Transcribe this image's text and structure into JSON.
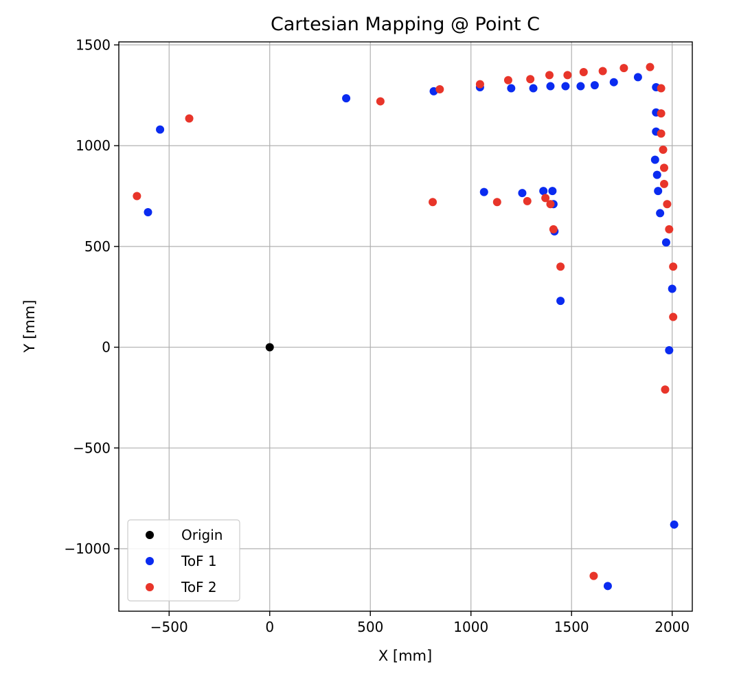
{
  "chart_data": {
    "type": "scatter",
    "title": "Cartesian Mapping @ Point C",
    "xlabel": "X [mm]",
    "ylabel": "Y [mm]",
    "xlim": [
      -750,
      2100
    ],
    "ylim": [
      -1310,
      1515
    ],
    "xticks": [
      -500,
      0,
      500,
      1000,
      1500,
      2000
    ],
    "yticks": [
      -1000,
      -500,
      0,
      500,
      1000,
      1500
    ],
    "xtick_labels": [
      "−500",
      "0",
      "500",
      "1000",
      "1500",
      "2000"
    ],
    "ytick_labels": [
      "−1000",
      "−500",
      "0",
      "500",
      "1000",
      "1500"
    ],
    "grid": true,
    "legend": "lower-left",
    "series": [
      {
        "name": "Origin",
        "color": "#000000",
        "points": [
          [
            0,
            0
          ]
        ]
      },
      {
        "name": "ToF 1",
        "color": "#0a2bf0",
        "points": [
          [
            -545,
            1080
          ],
          [
            -605,
            670
          ],
          [
            380,
            1235
          ],
          [
            815,
            1270
          ],
          [
            1045,
            1290
          ],
          [
            1200,
            1285
          ],
          [
            1310,
            1285
          ],
          [
            1395,
            1295
          ],
          [
            1470,
            1295
          ],
          [
            1545,
            1295
          ],
          [
            1615,
            1300
          ],
          [
            1710,
            1315
          ],
          [
            1830,
            1340
          ],
          [
            1920,
            1290
          ],
          [
            1920,
            1165
          ],
          [
            1920,
            1070
          ],
          [
            1915,
            930
          ],
          [
            1925,
            855
          ],
          [
            1930,
            775
          ],
          [
            1940,
            665
          ],
          [
            1970,
            520
          ],
          [
            2000,
            290
          ],
          [
            1985,
            -15
          ],
          [
            2010,
            -880
          ],
          [
            1680,
            -1185
          ],
          [
            1065,
            770
          ],
          [
            1255,
            765
          ],
          [
            1360,
            775
          ],
          [
            1405,
            775
          ],
          [
            1410,
            710
          ],
          [
            1415,
            575
          ],
          [
            1445,
            230
          ]
        ]
      },
      {
        "name": "ToF 2",
        "color": "#e8352a",
        "points": [
          [
            -660,
            750
          ],
          [
            -400,
            1135
          ],
          [
            550,
            1220
          ],
          [
            845,
            1280
          ],
          [
            1045,
            1305
          ],
          [
            1185,
            1325
          ],
          [
            1295,
            1330
          ],
          [
            1390,
            1350
          ],
          [
            1480,
            1350
          ],
          [
            1560,
            1365
          ],
          [
            1655,
            1370
          ],
          [
            1760,
            1385
          ],
          [
            1890,
            1390
          ],
          [
            1945,
            1285
          ],
          [
            1945,
            1160
          ],
          [
            1945,
            1060
          ],
          [
            1955,
            980
          ],
          [
            1960,
            890
          ],
          [
            1960,
            810
          ],
          [
            1975,
            710
          ],
          [
            1985,
            585
          ],
          [
            2005,
            400
          ],
          [
            2005,
            150
          ],
          [
            1965,
            -210
          ],
          [
            1610,
            -1135
          ],
          [
            810,
            720
          ],
          [
            1130,
            720
          ],
          [
            1280,
            725
          ],
          [
            1370,
            740
          ],
          [
            1395,
            710
          ],
          [
            1410,
            585
          ],
          [
            1445,
            400
          ]
        ]
      }
    ]
  }
}
